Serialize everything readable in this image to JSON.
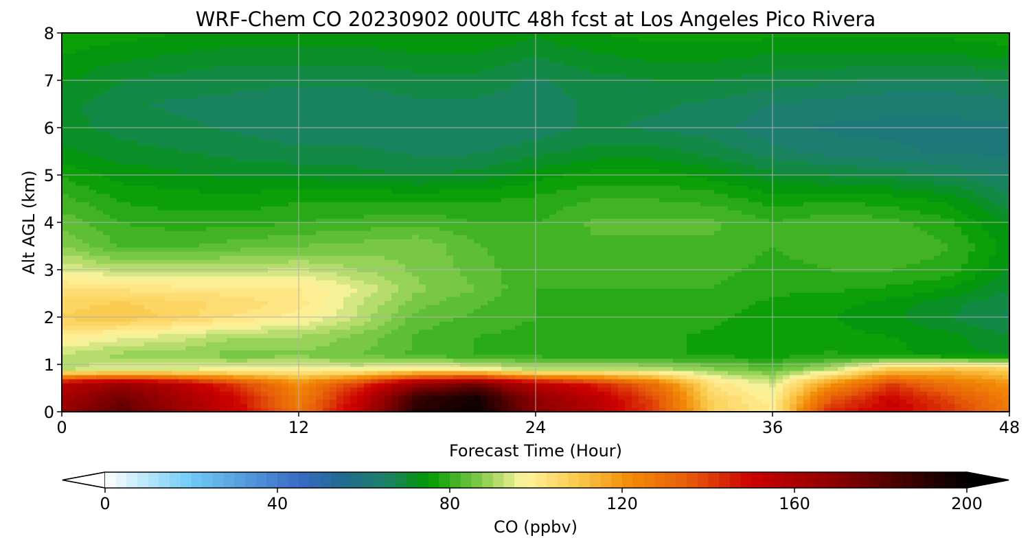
{
  "chart_data": {
    "type": "heatmap",
    "title": "WRF-Chem CO  20230902 00UTC 48h fcst at Los Angeles Pico Rivera",
    "xlabel": "Forecast Time (Hour)",
    "ylabel": "Alt AGL (km)",
    "xlim": [
      0,
      48
    ],
    "ylim": [
      0,
      8
    ],
    "x_ticks": [
      0,
      12,
      24,
      36,
      48
    ],
    "y_ticks": [
      0,
      1,
      2,
      3,
      4,
      5,
      6,
      7,
      8
    ],
    "grid": true,
    "x": [
      0,
      3,
      6,
      9,
      12,
      15,
      18,
      21,
      24,
      27,
      30,
      33,
      36,
      39,
      42,
      45,
      48
    ],
    "y": [
      0,
      0.3,
      0.6,
      0.9,
      1.2,
      1.6,
      2.0,
      2.3,
      2.6,
      3.0,
      3.5,
      4.0,
      4.5,
      5.0,
      5.5,
      6.0,
      6.5,
      7.0,
      7.5,
      8.0
    ],
    "z": [
      [
        165,
        180,
        165,
        150,
        128,
        155,
        192,
        198,
        170,
        158,
        140,
        108,
        100,
        145,
        152,
        142,
        128
      ],
      [
        162,
        175,
        162,
        148,
        126,
        150,
        188,
        196,
        168,
        155,
        138,
        106,
        98,
        135,
        150,
        138,
        125
      ],
      [
        155,
        165,
        155,
        140,
        122,
        140,
        165,
        175,
        155,
        145,
        130,
        102,
        94,
        120,
        140,
        128,
        120
      ],
      [
        92,
        95,
        95,
        96,
        98,
        96,
        100,
        98,
        92,
        93,
        92,
        88,
        84,
        92,
        110,
        112,
        108
      ],
      [
        92,
        89,
        88,
        86,
        87,
        85,
        82,
        80,
        79,
        78,
        78,
        77,
        76,
        78,
        76,
        74,
        72
      ],
      [
        100,
        96,
        94,
        90,
        90,
        87,
        82,
        80,
        79,
        78,
        78,
        77,
        76,
        76,
        75,
        73,
        70
      ],
      [
        108,
        110,
        106,
        102,
        99,
        92,
        84,
        82,
        80,
        79,
        79,
        78,
        76,
        75,
        73,
        70,
        67
      ],
      [
        106,
        108,
        106,
        104,
        101,
        93,
        86,
        83,
        80,
        79,
        80,
        79,
        77,
        76,
        74,
        71,
        68
      ],
      [
        103,
        102,
        101,
        101,
        100,
        95,
        88,
        85,
        80,
        80,
        80,
        80,
        78,
        78,
        77,
        75,
        70
      ],
      [
        95,
        92,
        92,
        92,
        93,
        90,
        87,
        84,
        80,
        81,
        81,
        81,
        79,
        80,
        80,
        79,
        72
      ],
      [
        88,
        82,
        82,
        84,
        85,
        86,
        87,
        83,
        80,
        82,
        82,
        82,
        80,
        82,
        82,
        80,
        74
      ],
      [
        84,
        80,
        79,
        79,
        80,
        81,
        82,
        80,
        80,
        83,
        83,
        83,
        80,
        82,
        81,
        78,
        72
      ],
      [
        81,
        77,
        76,
        76,
        77,
        77,
        77,
        77,
        78,
        80,
        80,
        79,
        76,
        77,
        76,
        74,
        68
      ],
      [
        77,
        74,
        73,
        72,
        72,
        71,
        70,
        71,
        74,
        76,
        76,
        74,
        71,
        70,
        69,
        67,
        65
      ],
      [
        73,
        71,
        70,
        69,
        68,
        68,
        67,
        67,
        69,
        71,
        71,
        69,
        66,
        64,
        63,
        62,
        62
      ],
      [
        71,
        69,
        68,
        67,
        66,
        66,
        66,
        66,
        66,
        68,
        67,
        66,
        63,
        62,
        62,
        62,
        62
      ],
      [
        71,
        68,
        67,
        67,
        66,
        66,
        67,
        67,
        66,
        68,
        68,
        67,
        65,
        64,
        63,
        63,
        64
      ],
      [
        73,
        70,
        69,
        68,
        68,
        68,
        69,
        69,
        67,
        69,
        70,
        70,
        69,
        68,
        67,
        67,
        68
      ],
      [
        75,
        73,
        72,
        71,
        71,
        71,
        72,
        72,
        70,
        72,
        73,
        73,
        72,
        72,
        72,
        72,
        73
      ],
      [
        77,
        76,
        75,
        74,
        74,
        74,
        75,
        75,
        73,
        75,
        76,
        76,
        76,
        76,
        76,
        76,
        77
      ]
    ],
    "colorbar": {
      "label": "CO  (ppbv)",
      "min": 0,
      "max": 200,
      "step": 2.5,
      "ticks": [
        0,
        40,
        80,
        120,
        160,
        200
      ],
      "extend": "both",
      "colors": [
        {
          "v": 0,
          "c": "#ffffff"
        },
        {
          "v": 20,
          "c": "#6ecbf5"
        },
        {
          "v": 45,
          "c": "#3a6bc4"
        },
        {
          "v": 55,
          "c": "#1f6b91"
        },
        {
          "v": 65,
          "c": "#1d7f6c"
        },
        {
          "v": 75,
          "c": "#009a00"
        },
        {
          "v": 88,
          "c": "#8ccf50"
        },
        {
          "v": 97,
          "c": "#fff4a0"
        },
        {
          "v": 110,
          "c": "#fbc84a"
        },
        {
          "v": 122,
          "c": "#f28a06"
        },
        {
          "v": 135,
          "c": "#e85e0a"
        },
        {
          "v": 150,
          "c": "#cc0000"
        },
        {
          "v": 170,
          "c": "#8a0000"
        },
        {
          "v": 200,
          "c": "#000000"
        }
      ]
    }
  }
}
